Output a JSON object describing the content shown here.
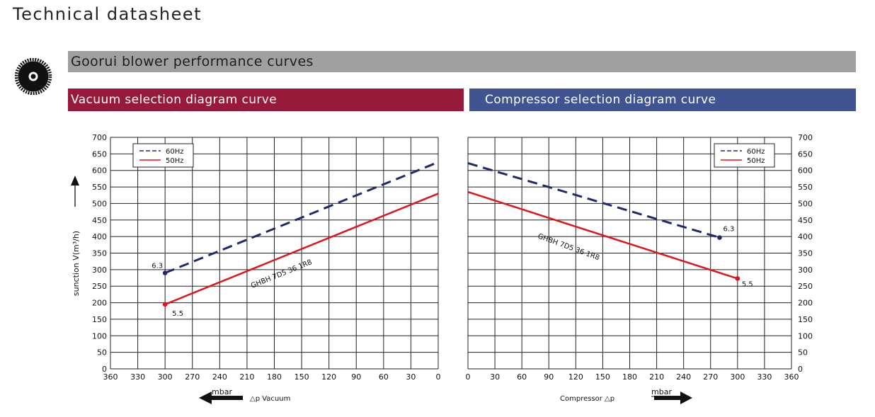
{
  "title": "Technical datasheet",
  "section_title": "Goorui blower performance curves",
  "panels": {
    "vacuum_title": "Vacuum selection diagram curve",
    "compressor_title": "Compressor selection diagram curve"
  },
  "colors": {
    "hz60": "#1f2a6e",
    "hz50": "#e0141e",
    "band_gray": "#a0a0a0",
    "band_red": "#981a3a",
    "band_blue": "#3f5491"
  },
  "icons": [
    "blower-wheel-icon",
    "arrow-up-icon",
    "arrow-left-icon",
    "arrow-right-icon"
  ],
  "ylabel": "sunction V(m³/h)",
  "legend": [
    "60Hz",
    "50Hz"
  ],
  "model_label": "GHBH 7D5 36 1R8",
  "vacuum_axis": {
    "unit": "mbar",
    "label": "△p  Vacuum"
  },
  "compressor_axis": {
    "label": "Compressor  △p",
    "unit": "mbar"
  },
  "chart_data": [
    {
      "type": "line",
      "title": "Vacuum selection diagram curve",
      "xlabel": "△p Vacuum (mbar)",
      "ylabel": "sunction V(m³/h)",
      "x_direction": "reversed",
      "xlim": [
        360,
        0
      ],
      "ylim": [
        0,
        700
      ],
      "x_ticks": [
        360,
        330,
        300,
        270,
        240,
        210,
        180,
        150,
        120,
        90,
        60,
        30,
        0
      ],
      "y_ticks": [
        0,
        50,
        100,
        150,
        200,
        250,
        300,
        350,
        400,
        450,
        500,
        550,
        600,
        650,
        700
      ],
      "grid": true,
      "legend_position": "top-left",
      "series": [
        {
          "name": "60Hz",
          "style": "dashed",
          "x": [
            300,
            0
          ],
          "y": [
            290,
            625
          ],
          "end_label": "6.3",
          "end_label_at": 300
        },
        {
          "name": "50Hz",
          "style": "solid",
          "x": [
            300,
            0
          ],
          "y": [
            195,
            530
          ],
          "end_label": "5.5",
          "end_label_at": 300
        }
      ],
      "annotation": "GHBH 7D5 36 1R8"
    },
    {
      "type": "line",
      "title": "Compressor selection diagram curve",
      "xlabel": "Compressor △p (mbar)",
      "ylabel": "sunction V(m³/h)",
      "xlim": [
        0,
        360
      ],
      "ylim": [
        0,
        700
      ],
      "x_ticks": [
        0,
        30,
        60,
        90,
        120,
        150,
        180,
        210,
        240,
        270,
        300,
        330,
        360
      ],
      "y_ticks": [
        0,
        50,
        100,
        150,
        200,
        250,
        300,
        350,
        400,
        450,
        500,
        550,
        600,
        650,
        700
      ],
      "grid": true,
      "legend_position": "top-right",
      "series": [
        {
          "name": "60Hz",
          "style": "dashed",
          "x": [
            0,
            280
          ],
          "y": [
            622,
            397
          ],
          "end_label": "6.3",
          "end_label_at": 280
        },
        {
          "name": "50Hz",
          "style": "solid",
          "x": [
            0,
            300
          ],
          "y": [
            535,
            273
          ],
          "end_label": "5.5",
          "end_label_at": 300
        }
      ],
      "annotation": "GHBH 7D5 36 1R8"
    }
  ]
}
